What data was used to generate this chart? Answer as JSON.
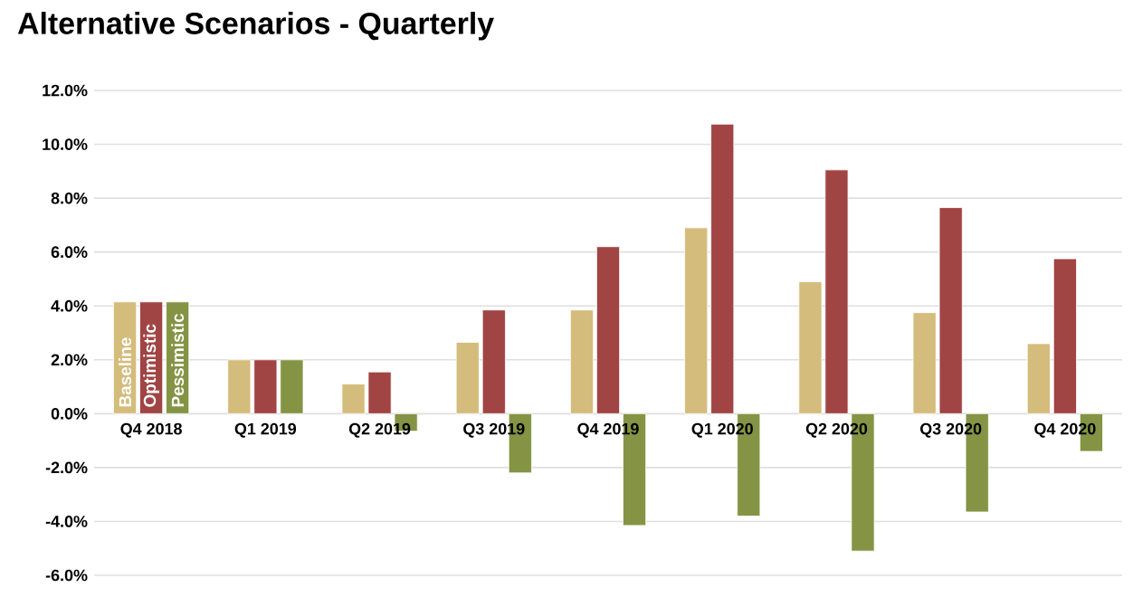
{
  "chart_data": {
    "type": "bar",
    "title": "Alternative Scenarios - Quarterly",
    "categories": [
      "Q4 2018",
      "Q1 2019",
      "Q2 2019",
      "Q3 2019",
      "Q4 2019",
      "Q1 2020",
      "Q2 2020",
      "Q3 2020",
      "Q4 2020"
    ],
    "series": [
      {
        "name": "Baseline",
        "color": "#d4bc7c",
        "values": [
          4.15,
          2.0,
          1.1,
          2.65,
          3.85,
          6.9,
          4.9,
          3.75,
          2.6
        ]
      },
      {
        "name": "Optimistic",
        "color": "#a04444",
        "values": [
          4.15,
          2.0,
          1.55,
          3.85,
          6.2,
          10.75,
          9.05,
          7.65,
          5.75
        ]
      },
      {
        "name": "Pessimistic",
        "color": "#849444",
        "values": [
          4.15,
          2.0,
          -0.65,
          -2.2,
          -4.15,
          -3.8,
          -5.1,
          -3.65,
          -1.4
        ]
      }
    ],
    "ylim": [
      -6,
      12
    ],
    "yticks": [
      {
        "value": -6,
        "label": "-6.0%"
      },
      {
        "value": -4,
        "label": "-4.0%"
      },
      {
        "value": -2,
        "label": "-2.0%"
      },
      {
        "value": 0,
        "label": "0.0%"
      },
      {
        "value": 2,
        "label": "2.0%"
      },
      {
        "value": 4,
        "label": "4.0%"
      },
      {
        "value": 6,
        "label": "6.0%"
      },
      {
        "value": 8,
        "label": "8.0%"
      },
      {
        "value": 10,
        "label": "10.0%"
      },
      {
        "value": 12,
        "label": "12.0%"
      }
    ],
    "grid": "y"
  }
}
